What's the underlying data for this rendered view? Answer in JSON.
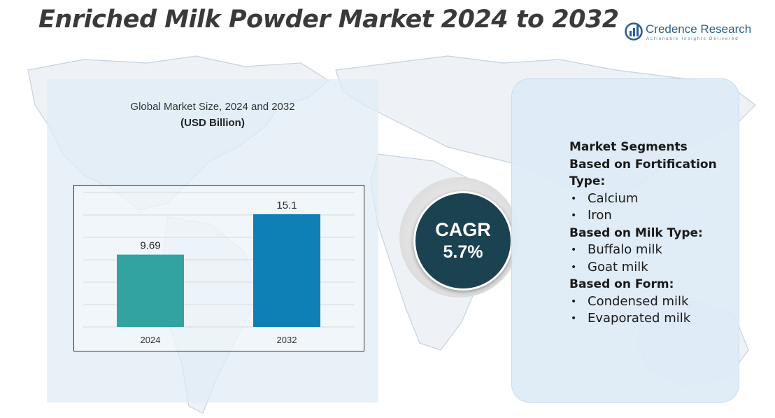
{
  "title": "Enriched Milk Powder Market 2024 to 2032",
  "logo": {
    "name": "Credence Research",
    "tagline": "Actionable Insights Delivered"
  },
  "chart_data": {
    "type": "bar",
    "title": "Global Market Size, 2024 and 2032",
    "unit": "(USD Billion)",
    "categories": [
      "2024",
      "2032"
    ],
    "values": [
      9.69,
      15.1
    ],
    "value_labels": [
      "9.69",
      "15.1"
    ],
    "colors": [
      "#33a3a1",
      "#0f80b5"
    ],
    "ylim": [
      0,
      18
    ],
    "grid": true,
    "legend": "none"
  },
  "cagr": {
    "label": "CAGR",
    "value": "5.7%"
  },
  "segments": {
    "heading": "Market Segments",
    "groups": [
      {
        "title": "Based on Fortification Type:",
        "items": [
          "Calcium",
          "Iron"
        ]
      },
      {
        "title": "Based on Milk Type:",
        "items": [
          "Buffalo milk",
          "Goat milk"
        ]
      },
      {
        "title": "Based on Form:",
        "items": [
          "Condensed milk",
          "Evaporated milk"
        ]
      }
    ]
  },
  "colors": {
    "map": "#c9d6e0",
    "panel": "#dfebf5",
    "cagr_circle": "#1b4250"
  }
}
